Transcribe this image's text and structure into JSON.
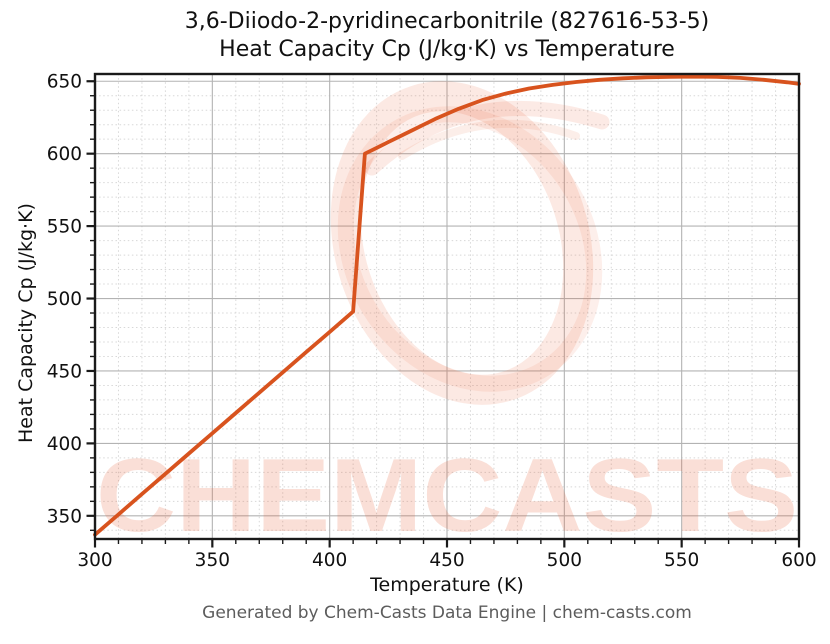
{
  "figure": {
    "title_line1": "3,6-Diiodo-2-pyridinecarbonitrile (827616-53-5)",
    "title_line2": "Heat Capacity Cp (J/kg·K) vs Temperature",
    "x_axis_label": "Temperature (K)",
    "y_axis_label": "Heat Capacity Cp (J/kg·K)",
    "footer": "Generated by Chem-Casts Data Engine | chem-casts.com",
    "watermark_text": "CHEMCASTS",
    "colors": {
      "line": "#d8531e",
      "major_grid": "#b3b3b3",
      "minor_grid": "#d8d8d8",
      "spine": "#1a1a1a",
      "tick_label": "#111111",
      "footer_text": "#5c5c5c",
      "watermark_fill": "rgba(231,96,55,0.20)",
      "watermark_ring": "rgba(231,96,55,0.14)"
    }
  },
  "chart_data": {
    "type": "line",
    "title": "3,6-Diiodo-2-pyridinecarbonitrile (827616-53-5) Heat Capacity Cp (J/kg·K) vs Temperature",
    "xlabel": "Temperature (K)",
    "ylabel": "Heat Capacity Cp (J/kg·K)",
    "xlim": [
      300,
      600
    ],
    "ylim": [
      334,
      655
    ],
    "x_ticks": [
      300,
      350,
      400,
      450,
      500,
      550,
      600
    ],
    "y_ticks": [
      350,
      400,
      450,
      500,
      550,
      600,
      650
    ],
    "minor_step_x": 10,
    "minor_step_y": 10,
    "grid": "major solid gray, minor dashed light gray",
    "legend": "none",
    "annotations": "step jump (solid-to-liquid transition) between T=410 K and T=415 K",
    "series": [
      {
        "name": "Heat Capacity Cp",
        "points": [
          [
            300,
            337
          ],
          [
            310,
            351
          ],
          [
            320,
            365
          ],
          [
            330,
            379
          ],
          [
            340,
            393
          ],
          [
            350,
            407
          ],
          [
            360,
            421
          ],
          [
            370,
            435
          ],
          [
            380,
            449
          ],
          [
            390,
            463
          ],
          [
            400,
            477
          ],
          [
            410,
            491
          ],
          [
            415,
            600
          ],
          [
            425,
            608
          ],
          [
            435,
            616
          ],
          [
            445,
            624
          ],
          [
            455,
            631
          ],
          [
            465,
            637
          ],
          [
            475,
            641.5
          ],
          [
            485,
            645
          ],
          [
            495,
            647.5
          ],
          [
            505,
            649.5
          ],
          [
            515,
            651
          ],
          [
            525,
            652
          ],
          [
            535,
            652.7
          ],
          [
            545,
            653
          ],
          [
            555,
            653.2
          ],
          [
            565,
            653
          ],
          [
            575,
            652.3
          ],
          [
            585,
            651
          ],
          [
            595,
            649.3
          ],
          [
            600,
            648.2
          ]
        ]
      }
    ]
  }
}
